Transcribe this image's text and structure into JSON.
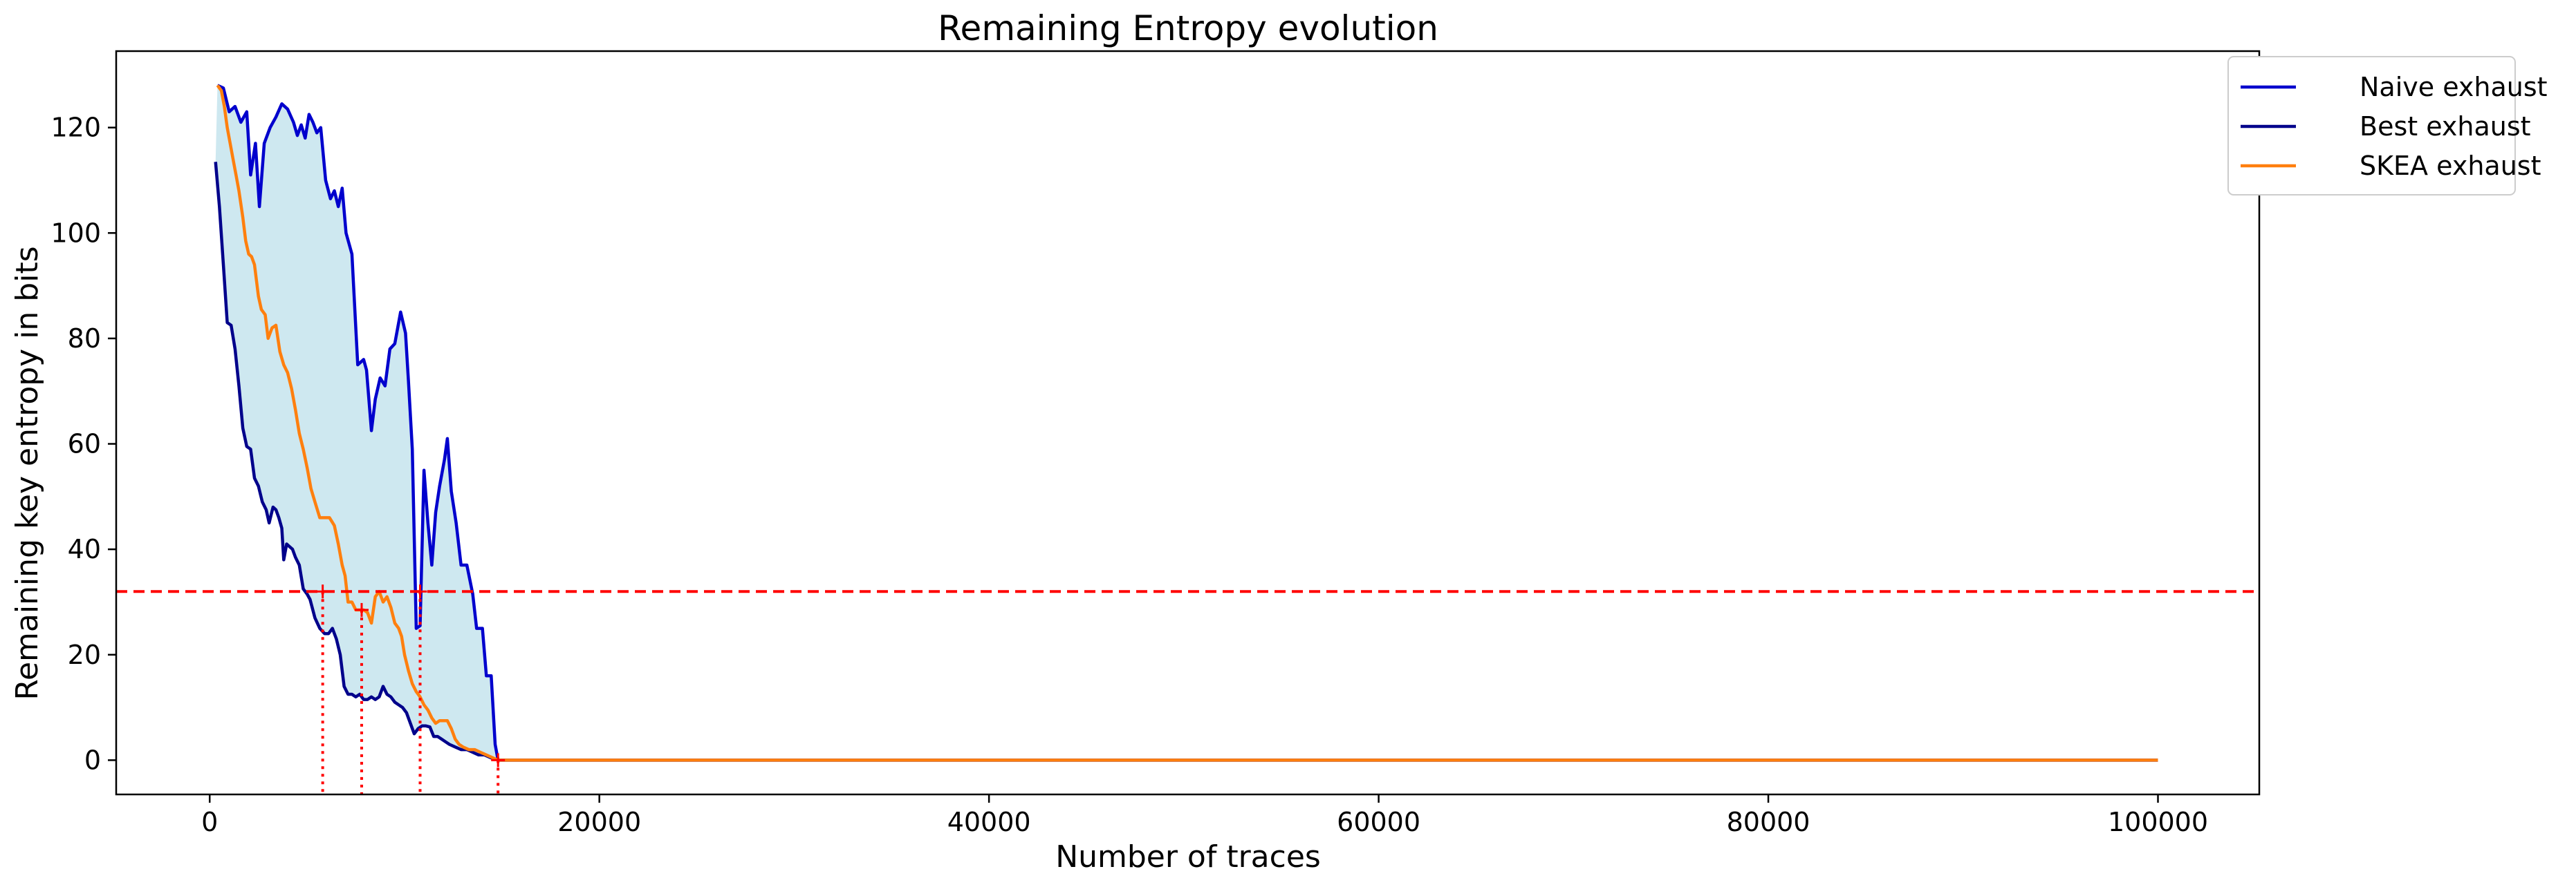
{
  "chart_data": {
    "type": "line",
    "title": "Remaining Entropy evolution",
    "xlabel": "Number of traces",
    "ylabel": "Remaining key entropy in bits",
    "xlim": [
      -4800,
      105200
    ],
    "ylim": [
      -6.5,
      134.5
    ],
    "xticks": [
      0,
      20000,
      40000,
      60000,
      80000,
      100000
    ],
    "xtick_labels": [
      "0",
      "20000",
      "40000",
      "60000",
      "80000",
      "100000"
    ],
    "yticks": [
      0,
      20,
      40,
      60,
      80,
      100,
      120
    ],
    "ytick_labels": [
      "0",
      "20",
      "40",
      "60",
      "80",
      "100",
      "120"
    ],
    "grid": false,
    "legend_position": "outside-top-right",
    "threshold": {
      "y": 32,
      "color": "#ff0000",
      "style": "dashed"
    },
    "crossings": [
      {
        "x": 5800,
        "y": 32
      },
      {
        "x": 7800,
        "y": 28.5
      },
      {
        "x": 10800,
        "y": 32
      },
      {
        "x": 14800,
        "y": 0
      }
    ],
    "fill_between": {
      "upper": "Naive exhaust",
      "lower": "Best exhaust",
      "color": "#add8e6"
    },
    "series": [
      {
        "name": "Naive exhaust",
        "color": "#0000cd",
        "points": [
          [
            400,
            128
          ],
          [
            700,
            127.5
          ],
          [
            1000,
            123
          ],
          [
            1300,
            124
          ],
          [
            1600,
            121
          ],
          [
            1900,
            123
          ],
          [
            2100,
            111
          ],
          [
            2350,
            117
          ],
          [
            2550,
            105
          ],
          [
            2800,
            117
          ],
          [
            3100,
            120
          ],
          [
            3400,
            122
          ],
          [
            3700,
            124.5
          ],
          [
            4000,
            123.5
          ],
          [
            4300,
            121
          ],
          [
            4500,
            118.5
          ],
          [
            4700,
            120.5
          ],
          [
            4900,
            118
          ],
          [
            5100,
            122.5
          ],
          [
            5300,
            121
          ],
          [
            5500,
            119
          ],
          [
            5700,
            120
          ],
          [
            5950,
            110
          ],
          [
            6200,
            106.5
          ],
          [
            6400,
            108
          ],
          [
            6600,
            105
          ],
          [
            6800,
            108.5
          ],
          [
            7000,
            100
          ],
          [
            7300,
            96
          ],
          [
            7600,
            75
          ],
          [
            7900,
            76
          ],
          [
            8050,
            74
          ],
          [
            8300,
            62.5
          ],
          [
            8500,
            68.5
          ],
          [
            8750,
            72.5
          ],
          [
            9000,
            71
          ],
          [
            9250,
            78
          ],
          [
            9500,
            79
          ],
          [
            9800,
            85
          ],
          [
            10050,
            81
          ],
          [
            10200,
            72
          ],
          [
            10400,
            59
          ],
          [
            10600,
            25
          ],
          [
            10800,
            25.5
          ],
          [
            11000,
            55
          ],
          [
            11200,
            45
          ],
          [
            11400,
            37
          ],
          [
            11600,
            47
          ],
          [
            11800,
            52
          ],
          [
            12050,
            57
          ],
          [
            12200,
            61
          ],
          [
            12400,
            51
          ],
          [
            12650,
            45
          ],
          [
            12900,
            37
          ],
          [
            13200,
            37
          ],
          [
            13500,
            31.5
          ],
          [
            13700,
            25
          ],
          [
            14000,
            25
          ],
          [
            14200,
            16
          ],
          [
            14450,
            16
          ],
          [
            14650,
            3
          ],
          [
            14800,
            0
          ],
          [
            100000,
            0
          ]
        ]
      },
      {
        "name": "Best exhaust",
        "color": "#00008b",
        "points": [
          [
            300,
            113.5
          ],
          [
            500,
            105
          ],
          [
            700,
            94
          ],
          [
            900,
            83
          ],
          [
            1100,
            82.5
          ],
          [
            1300,
            78
          ],
          [
            1500,
            71
          ],
          [
            1700,
            63
          ],
          [
            1900,
            59.5
          ],
          [
            2100,
            59
          ],
          [
            2300,
            53.5
          ],
          [
            2500,
            52
          ],
          [
            2700,
            49
          ],
          [
            2900,
            47.5
          ],
          [
            3050,
            45
          ],
          [
            3250,
            48
          ],
          [
            3400,
            47.5
          ],
          [
            3550,
            46
          ],
          [
            3700,
            44
          ],
          [
            3800,
            38
          ],
          [
            3950,
            41
          ],
          [
            4100,
            40.5
          ],
          [
            4250,
            40
          ],
          [
            4400,
            38.5
          ],
          [
            4600,
            37
          ],
          [
            4800,
            32.5
          ],
          [
            5000,
            31.5
          ],
          [
            5150,
            30.5
          ],
          [
            5400,
            27
          ],
          [
            5650,
            25
          ],
          [
            5900,
            24
          ],
          [
            6100,
            24
          ],
          [
            6300,
            25
          ],
          [
            6500,
            23
          ],
          [
            6700,
            20
          ],
          [
            6900,
            14
          ],
          [
            7100,
            12.5
          ],
          [
            7300,
            12.5
          ],
          [
            7500,
            12
          ],
          [
            7700,
            12.5
          ],
          [
            7900,
            11.5
          ],
          [
            8100,
            11.5
          ],
          [
            8300,
            12
          ],
          [
            8500,
            11.5
          ],
          [
            8700,
            12
          ],
          [
            8900,
            14
          ],
          [
            9100,
            12.5
          ],
          [
            9300,
            12
          ],
          [
            9500,
            11
          ],
          [
            9700,
            10.5
          ],
          [
            9900,
            10
          ],
          [
            10100,
            9
          ],
          [
            10300,
            7
          ],
          [
            10500,
            5
          ],
          [
            10700,
            6
          ],
          [
            10900,
            6.5
          ],
          [
            11100,
            6.5
          ],
          [
            11300,
            6.3
          ],
          [
            11500,
            4.5
          ],
          [
            11700,
            4.5
          ],
          [
            11900,
            4
          ],
          [
            12100,
            3.5
          ],
          [
            12300,
            3
          ],
          [
            12600,
            2.5
          ],
          [
            12900,
            2
          ],
          [
            13200,
            2
          ],
          [
            13500,
            1.5
          ],
          [
            13800,
            1
          ],
          [
            14100,
            1
          ],
          [
            14400,
            0.5
          ],
          [
            14800,
            0
          ],
          [
            100000,
            0
          ]
        ]
      },
      {
        "name": "SKEA exhaust",
        "color": "#ff7f0e",
        "points": [
          [
            400,
            128
          ],
          [
            600,
            127
          ],
          [
            750,
            124
          ],
          [
            900,
            120
          ],
          [
            1050,
            117
          ],
          [
            1200,
            114
          ],
          [
            1350,
            111
          ],
          [
            1500,
            108
          ],
          [
            1700,
            103
          ],
          [
            1850,
            98.5
          ],
          [
            2000,
            96
          ],
          [
            2150,
            95.5
          ],
          [
            2300,
            94
          ],
          [
            2500,
            88
          ],
          [
            2650,
            85.5
          ],
          [
            2850,
            84.5
          ],
          [
            3000,
            80
          ],
          [
            3200,
            82
          ],
          [
            3400,
            82.5
          ],
          [
            3600,
            77.5
          ],
          [
            3800,
            75
          ],
          [
            4000,
            73.5
          ],
          [
            4200,
            70.5
          ],
          [
            4400,
            66.5
          ],
          [
            4600,
            62
          ],
          [
            4800,
            59
          ],
          [
            5000,
            55.5
          ],
          [
            5200,
            51.5
          ],
          [
            5400,
            49
          ],
          [
            5650,
            46
          ],
          [
            5900,
            46
          ],
          [
            6150,
            46
          ],
          [
            6400,
            44.5
          ],
          [
            6600,
            41
          ],
          [
            6800,
            37
          ],
          [
            6950,
            35
          ],
          [
            7100,
            30
          ],
          [
            7300,
            30
          ],
          [
            7500,
            28.5
          ],
          [
            7700,
            28.5
          ],
          [
            7900,
            28.5
          ],
          [
            8100,
            28
          ],
          [
            8300,
            26
          ],
          [
            8500,
            31
          ],
          [
            8700,
            32
          ],
          [
            8900,
            30
          ],
          [
            9100,
            31
          ],
          [
            9300,
            29
          ],
          [
            9500,
            26
          ],
          [
            9700,
            25
          ],
          [
            9850,
            23.5
          ],
          [
            10000,
            20
          ],
          [
            10200,
            17
          ],
          [
            10400,
            14.5
          ],
          [
            10600,
            13
          ],
          [
            10800,
            12
          ],
          [
            11000,
            10.5
          ],
          [
            11200,
            9.5
          ],
          [
            11400,
            8
          ],
          [
            11600,
            7
          ],
          [
            11800,
            7.5
          ],
          [
            12000,
            7.5
          ],
          [
            12200,
            7.5
          ],
          [
            12400,
            6
          ],
          [
            12600,
            4
          ],
          [
            12800,
            3
          ],
          [
            13000,
            2.5
          ],
          [
            13300,
            2
          ],
          [
            13600,
            2
          ],
          [
            13900,
            1.5
          ],
          [
            14200,
            1
          ],
          [
            14500,
            0.5
          ],
          [
            14800,
            0
          ],
          [
            100000,
            0
          ]
        ]
      }
    ]
  }
}
